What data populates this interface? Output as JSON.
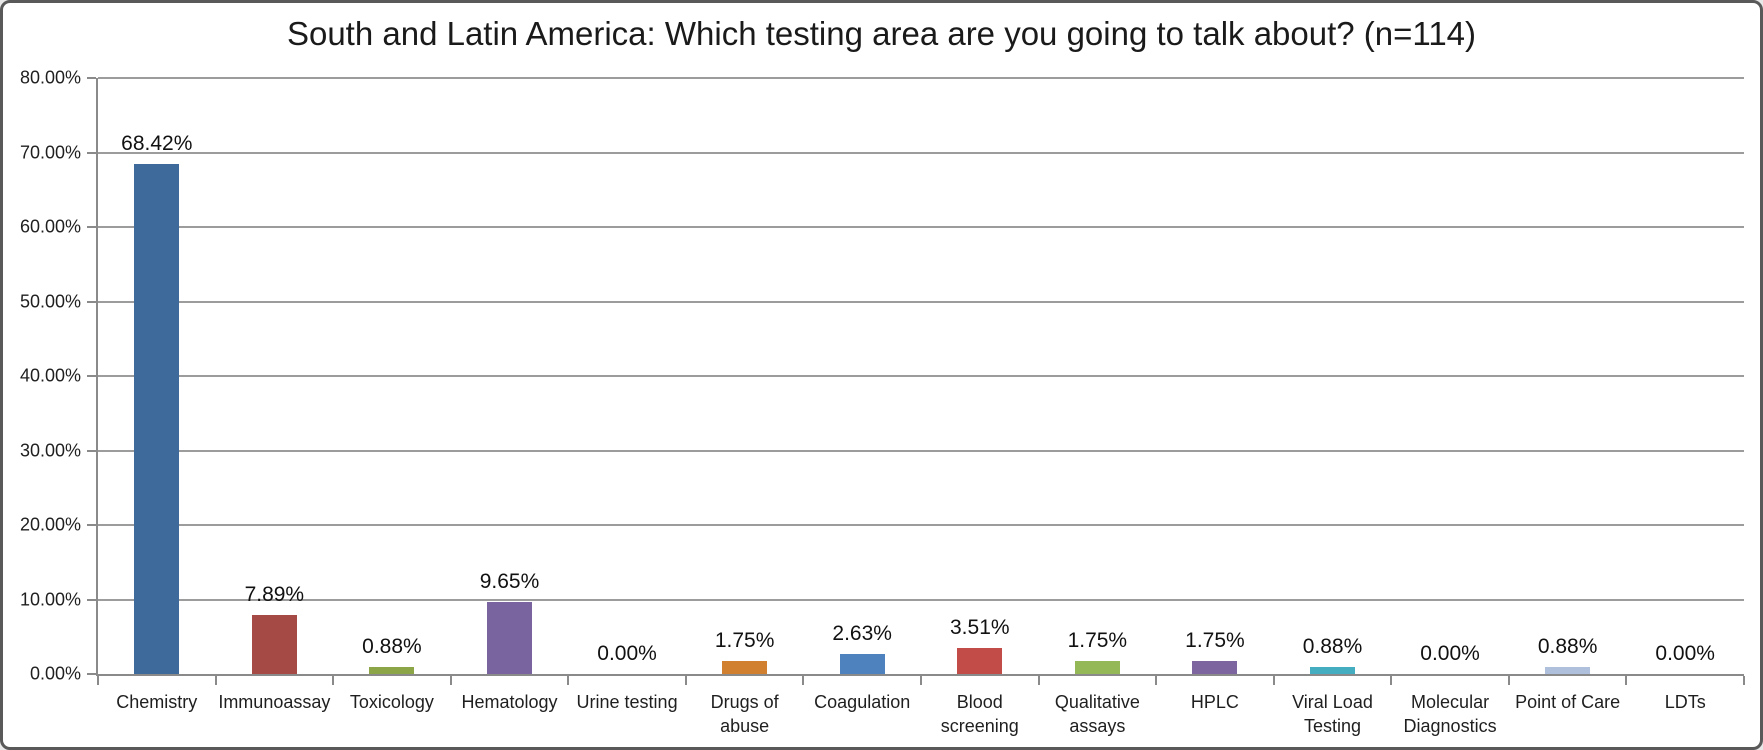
{
  "chart_data": {
    "type": "bar",
    "title": "South and Latin America: Which testing area are you going to talk about? (n=114)",
    "n": 114,
    "categories": [
      "Chemistry",
      "Immunoassay",
      "Toxicology",
      "Hematology",
      "Urine testing",
      "Drugs of abuse",
      "Coagulation",
      "Blood screening",
      "Qualitative assays",
      "HPLC",
      "Viral Load Testing",
      "Molecular Diagnostics",
      "Point of Care",
      "LDTs"
    ],
    "category_label_lines": [
      [
        "Chemistry"
      ],
      [
        "Immunoassay"
      ],
      [
        "Toxicology"
      ],
      [
        "Hematology"
      ],
      [
        "Urine testing"
      ],
      [
        "Drugs of",
        "abuse"
      ],
      [
        "Coagulation"
      ],
      [
        "Blood",
        "screening"
      ],
      [
        "Qualitative",
        "assays"
      ],
      [
        "HPLC"
      ],
      [
        "Viral Load",
        "Testing"
      ],
      [
        "Molecular",
        "Diagnostics"
      ],
      [
        "Point of Care"
      ],
      [
        "LDTs"
      ]
    ],
    "values": [
      68.42,
      7.89,
      0.88,
      9.65,
      0.0,
      1.75,
      2.63,
      3.51,
      1.75,
      1.75,
      0.88,
      0.0,
      0.88,
      0.0
    ],
    "data_labels": [
      "68.42%",
      "7.89%",
      "0.88%",
      "9.65%",
      "0.00%",
      "1.75%",
      "2.63%",
      "3.51%",
      "1.75%",
      "1.75%",
      "0.88%",
      "0.00%",
      "0.88%",
      "0.00%"
    ],
    "bar_colors": [
      "#3E6A9B",
      "#A54A44",
      "#8CA647",
      "#7A64A0",
      null,
      "#D0802F",
      "#4D82BE",
      "#C24D48",
      "#94B856",
      "#7D65A0",
      "#44AEC0",
      null,
      "#AFC0DD",
      null
    ],
    "y_tick_labels": [
      "80.00%",
      "70.00%",
      "60.00%",
      "50.00%",
      "40.00%",
      "30.00%",
      "20.00%",
      "10.00%",
      "0.00%"
    ],
    "y_tick_values": [
      80,
      70,
      60,
      50,
      40,
      30,
      20,
      10,
      0
    ],
    "ylim": [
      0,
      80
    ],
    "xlabel": "",
    "ylabel": "",
    "grid": true,
    "legend": "none",
    "gridline_color": "#9c9c9c",
    "axis_color": "#8a8a8a",
    "frame_border_color": "#595959",
    "background_color": "#ffffff"
  }
}
